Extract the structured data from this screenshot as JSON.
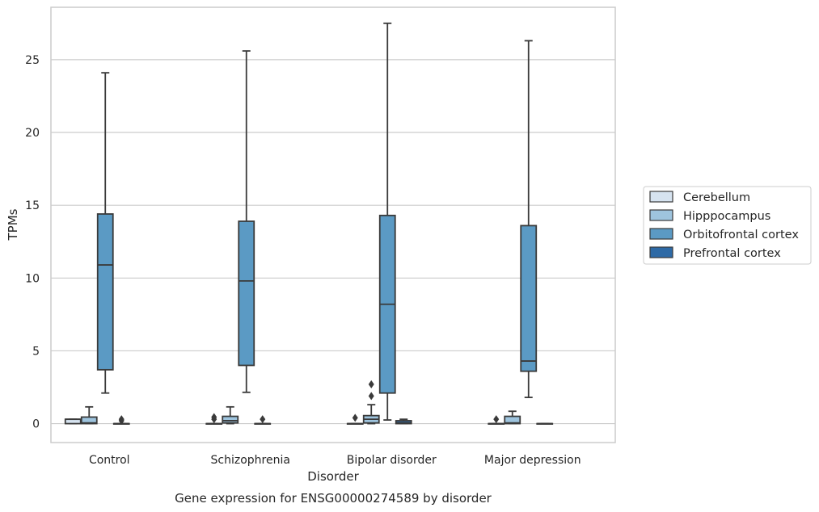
{
  "chart_data": {
    "type": "box",
    "title": "Gene expression for ENSG00000274589 by disorder",
    "xlabel": "Disorder",
    "ylabel": "TPMs",
    "ylim": [
      -1.3,
      28.6
    ],
    "yticks": [
      0,
      5,
      10,
      15,
      20,
      25
    ],
    "grid": "horizontal",
    "legend_position": "right",
    "categories": [
      "Control",
      "Schizophrenia",
      "Bipolar disorder",
      "Major depression"
    ],
    "series": [
      {
        "name": "Cerebellum",
        "color": "#d6e3f0",
        "boxes": [
          {
            "whisker_low": 0,
            "q1": 0,
            "median": 0.3,
            "q3": 0.3,
            "whisker_high": 0.3,
            "outliers": []
          },
          {
            "whisker_low": 0,
            "q1": 0,
            "median": 0,
            "q3": 0,
            "whisker_high": 0,
            "outliers": [
              0.3,
              0.45
            ]
          },
          {
            "whisker_low": 0,
            "q1": 0,
            "median": 0,
            "q3": 0,
            "whisker_high": 0,
            "outliers": [
              0.4
            ]
          },
          {
            "whisker_low": 0,
            "q1": 0,
            "median": 0,
            "q3": 0,
            "whisker_high": 0,
            "outliers": [
              0.3
            ]
          }
        ]
      },
      {
        "name": "Hipppocampus",
        "color": "#9ec4de",
        "boxes": [
          {
            "whisker_low": 0,
            "q1": 0,
            "median": 0.05,
            "q3": 0.45,
            "whisker_high": 1.15,
            "outliers": []
          },
          {
            "whisker_low": 0,
            "q1": 0.05,
            "median": 0.2,
            "q3": 0.5,
            "whisker_high": 1.15,
            "outliers": []
          },
          {
            "whisker_low": 0,
            "q1": 0.05,
            "median": 0.3,
            "q3": 0.55,
            "whisker_high": 1.3,
            "outliers": [
              1.9,
              2.7
            ]
          },
          {
            "whisker_low": 0,
            "q1": 0,
            "median": 0.05,
            "q3": 0.5,
            "whisker_high": 0.85,
            "outliers": []
          }
        ]
      },
      {
        "name": "Orbitofrontal cortex",
        "color": "#5b9ac4",
        "boxes": [
          {
            "whisker_low": 2.1,
            "q1": 3.7,
            "median": 10.9,
            "q3": 14.4,
            "whisker_high": 24.1,
            "outliers": []
          },
          {
            "whisker_low": 2.15,
            "q1": 4.0,
            "median": 9.8,
            "q3": 13.9,
            "whisker_high": 25.6,
            "outliers": []
          },
          {
            "whisker_low": 0.25,
            "q1": 2.1,
            "median": 8.2,
            "q3": 14.3,
            "whisker_high": 27.5,
            "outliers": []
          },
          {
            "whisker_low": 1.8,
            "q1": 3.6,
            "median": 4.3,
            "q3": 13.6,
            "whisker_high": 26.3,
            "outliers": []
          }
        ]
      },
      {
        "name": "Prefrontal cortex",
        "color": "#2e6aa6",
        "boxes": [
          {
            "whisker_low": 0,
            "q1": 0,
            "median": 0,
            "q3": 0,
            "whisker_high": 0,
            "outliers": [
              0.2,
              0.3
            ]
          },
          {
            "whisker_low": 0,
            "q1": 0,
            "median": 0,
            "q3": 0,
            "whisker_high": 0,
            "outliers": [
              0.3
            ]
          },
          {
            "whisker_low": 0,
            "q1": 0,
            "median": 0.05,
            "q3": 0.2,
            "whisker_high": 0.3,
            "outliers": []
          },
          {
            "whisker_low": 0,
            "q1": 0,
            "median": 0,
            "q3": 0,
            "whisker_high": 0,
            "outliers": []
          }
        ]
      }
    ]
  }
}
